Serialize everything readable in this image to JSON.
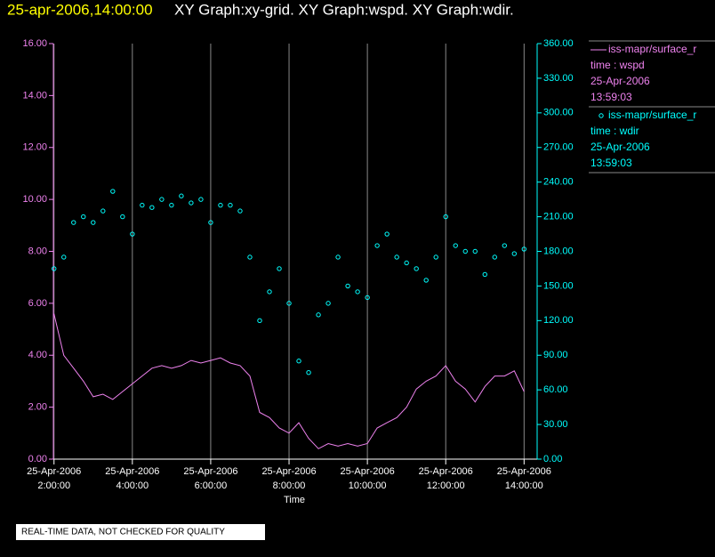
{
  "chart_data": {
    "type": "line",
    "title": "25-apr-2006,14:00:00",
    "subtitle": "XY Graph:xy-grid.  XY Graph:wspd.  XY Graph:wdir.",
    "xlabel": "Time",
    "footer": "REAL-TIME DATA, NOT CHECKED FOR QUALITY",
    "x": [
      "2006-04-25T02:00",
      "2006-04-25T02:15",
      "2006-04-25T02:30",
      "2006-04-25T02:45",
      "2006-04-25T03:00",
      "2006-04-25T03:15",
      "2006-04-25T03:30",
      "2006-04-25T03:45",
      "2006-04-25T04:00",
      "2006-04-25T04:15",
      "2006-04-25T04:30",
      "2006-04-25T04:45",
      "2006-04-25T05:00",
      "2006-04-25T05:15",
      "2006-04-25T05:30",
      "2006-04-25T05:45",
      "2006-04-25T06:00",
      "2006-04-25T06:15",
      "2006-04-25T06:30",
      "2006-04-25T06:45",
      "2006-04-25T07:00",
      "2006-04-25T07:15",
      "2006-04-25T07:30",
      "2006-04-25T07:45",
      "2006-04-25T08:00",
      "2006-04-25T08:15",
      "2006-04-25T08:30",
      "2006-04-25T08:45",
      "2006-04-25T09:00",
      "2006-04-25T09:15",
      "2006-04-25T09:30",
      "2006-04-25T09:45",
      "2006-04-25T10:00",
      "2006-04-25T10:15",
      "2006-04-25T10:30",
      "2006-04-25T10:45",
      "2006-04-25T11:00",
      "2006-04-25T11:15",
      "2006-04-25T11:30",
      "2006-04-25T11:45",
      "2006-04-25T12:00",
      "2006-04-25T12:15",
      "2006-04-25T12:30",
      "2006-04-25T12:45",
      "2006-04-25T13:00",
      "2006-04-25T13:15",
      "2006-04-25T13:30",
      "2006-04-25T13:45",
      "2006-04-25T14:00"
    ],
    "series": [
      {
        "name": "iss-mapr/surface_r",
        "type": "line",
        "color": "#ee82ee",
        "legend_lines": [
          "time : wspd",
          "25-Apr-2006",
          "13:59:03"
        ],
        "values": [
          5.6,
          4.0,
          3.5,
          3.0,
          2.4,
          2.5,
          2.3,
          2.6,
          2.9,
          3.2,
          3.5,
          3.6,
          3.5,
          3.6,
          3.8,
          3.7,
          3.8,
          3.9,
          3.7,
          3.6,
          3.2,
          1.8,
          1.6,
          1.2,
          1.0,
          1.4,
          0.8,
          0.4,
          0.6,
          0.5,
          0.6,
          0.5,
          0.6,
          1.2,
          1.4,
          1.6,
          2.0,
          2.7,
          3.0,
          3.2,
          3.6,
          3.0,
          2.7,
          2.2,
          2.8,
          3.2,
          3.2,
          3.4,
          2.6
        ]
      },
      {
        "name": "iss-mapr/surface_r",
        "type": "scatter",
        "color": "#00ffff",
        "axis": "y2",
        "legend_lines": [
          "time : wdir",
          "25-Apr-2006",
          "13:59:03"
        ],
        "values": [
          165,
          175,
          205,
          210,
          205,
          215,
          232,
          210,
          195,
          220,
          218,
          225,
          220,
          228,
          222,
          225,
          205,
          220,
          220,
          215,
          175,
          120,
          145,
          165,
          135,
          85,
          75,
          125,
          135,
          175,
          150,
          145,
          140,
          185,
          195,
          175,
          170,
          165,
          155,
          175,
          210,
          185,
          180,
          180,
          160,
          175,
          185,
          178,
          182
        ]
      }
    ],
    "xlim": [
      "2006-04-25T01:59",
      "2006-04-25T14:20"
    ],
    "xticks": [
      {
        "value": "2006-04-25T02:00",
        "label": [
          "25-Apr-2006",
          "2:00:00"
        ]
      },
      {
        "value": "2006-04-25T04:00",
        "label": [
          "25-Apr-2006",
          "4:00:00"
        ]
      },
      {
        "value": "2006-04-25T06:00",
        "label": [
          "25-Apr-2006",
          "6:00:00"
        ]
      },
      {
        "value": "2006-04-25T08:00",
        "label": [
          "25-Apr-2006",
          "8:00:00"
        ]
      },
      {
        "value": "2006-04-25T10:00",
        "label": [
          "25-Apr-2006",
          "10:00:00"
        ]
      },
      {
        "value": "2006-04-25T12:00",
        "label": [
          "25-Apr-2006",
          "12:00:00"
        ]
      },
      {
        "value": "2006-04-25T14:00",
        "label": [
          "25-Apr-2006",
          "14:00:00"
        ]
      }
    ],
    "ylim": [
      0,
      16
    ],
    "yticks": [
      {
        "value": 0,
        "label": "0.00"
      },
      {
        "value": 2,
        "label": "2.00"
      },
      {
        "value": 4,
        "label": "4.00"
      },
      {
        "value": 6,
        "label": "6.00"
      },
      {
        "value": 8,
        "label": "8.00"
      },
      {
        "value": 10,
        "label": "10.00"
      },
      {
        "value": 12,
        "label": "12.00"
      },
      {
        "value": 14,
        "label": "14.00"
      },
      {
        "value": 16,
        "label": "16.00"
      }
    ],
    "y2lim": [
      0,
      360
    ],
    "y2ticks": [
      {
        "value": 0,
        "label": "0.00"
      },
      {
        "value": 30,
        "label": "30.00"
      },
      {
        "value": 60,
        "label": "60.00"
      },
      {
        "value": 90,
        "label": "90.00"
      },
      {
        "value": 120,
        "label": "120.00"
      },
      {
        "value": 150,
        "label": "150.00"
      },
      {
        "value": 180,
        "label": "180.00"
      },
      {
        "value": 210,
        "label": "210.00"
      },
      {
        "value": 240,
        "label": "240.00"
      },
      {
        "value": 270,
        "label": "270.00"
      },
      {
        "value": 300,
        "label": "300.00"
      },
      {
        "value": 330,
        "label": "330.00"
      },
      {
        "value": 360,
        "label": "360.00"
      }
    ],
    "grid": true
  }
}
